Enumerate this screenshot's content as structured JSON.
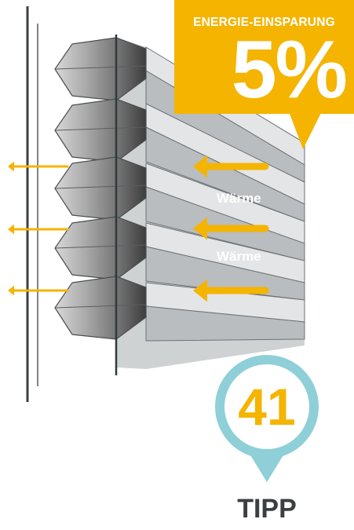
{
  "savings_badge": {
    "title": "ENERGIE-EINSPARUNG",
    "value": "5%",
    "color": "#f4b400"
  },
  "heat_labels": [
    "Wärme",
    "Wärme"
  ],
  "tip": {
    "number": "41",
    "label": "TIPP",
    "ring_color": "#8ecfd8"
  },
  "arrow_color": "#f4b400",
  "icons": {
    "arrow": "arrow-left-icon",
    "pin": "map-pin-icon",
    "shade": "honeycomb-shade-icon"
  }
}
